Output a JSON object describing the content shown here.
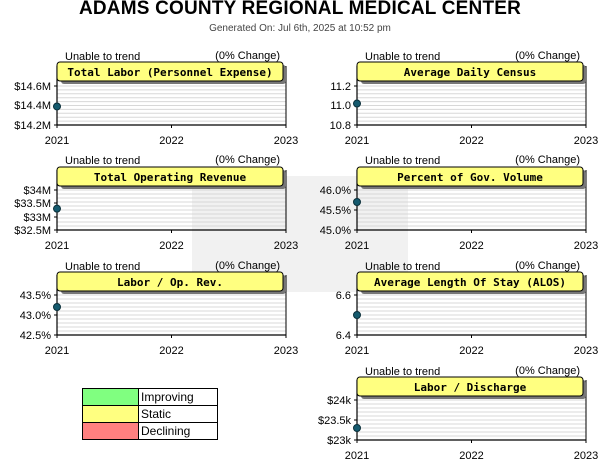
{
  "header": {
    "title": "ADAMS COUNTY REGIONAL MEDICAL CENTER",
    "generated": "Generated On: Jul 6th, 2025 at 10:52 pm"
  },
  "legend": [
    {
      "label": "Improving",
      "color": "#80ff80"
    },
    {
      "label": "Static",
      "color": "#ffff80"
    },
    {
      "label": "Declining",
      "color": "#ff8080"
    }
  ],
  "chart_data": [
    {
      "type": "line",
      "title": "Total Labor (Personnel Expense)",
      "trend": "Unable to trend",
      "change": "(0% Change)",
      "x_ticks": [
        "2021",
        "2022",
        "2023"
      ],
      "y_ticks": [
        "$14.6M",
        "$14.4M",
        "$14.2M"
      ],
      "ylim": [
        14.2,
        14.6
      ],
      "x": [
        2021
      ],
      "values": [
        14.39
      ]
    },
    {
      "type": "line",
      "title": "Average Daily Census",
      "trend": "Unable to trend",
      "change": "(0% Change)",
      "x_ticks": [
        "2021",
        "2022",
        "2023"
      ],
      "y_ticks": [
        "11.2",
        "11.0",
        "10.8"
      ],
      "ylim": [
        10.8,
        11.2
      ],
      "x": [
        2021
      ],
      "values": [
        11.02
      ]
    },
    {
      "type": "line",
      "title": "Total Operating Revenue",
      "trend": "Unable to trend",
      "change": "(0% Change)",
      "x_ticks": [
        "2021",
        "2022",
        "2023"
      ],
      "y_ticks": [
        "$34M",
        "$33.5M",
        "$33M",
        "$32.5M"
      ],
      "ylim": [
        32.5,
        34
      ],
      "x": [
        2021
      ],
      "values": [
        33.3
      ]
    },
    {
      "type": "line",
      "title": "Percent of Gov. Volume",
      "trend": "Unable to trend",
      "change": "(0% Change)",
      "x_ticks": [
        "2021",
        "2022",
        "2023"
      ],
      "y_ticks": [
        "46.0%",
        "45.5%",
        "45.0%"
      ],
      "ylim": [
        45.0,
        46.0
      ],
      "x": [
        2021
      ],
      "values": [
        45.7
      ]
    },
    {
      "type": "line",
      "title": "Labor / Op. Rev.",
      "trend": "Unable to trend",
      "change": "(0% Change)",
      "x_ticks": [
        "2021",
        "2022",
        "2023"
      ],
      "y_ticks": [
        "43.5%",
        "43.0%",
        "42.5%"
      ],
      "ylim": [
        42.5,
        43.5
      ],
      "x": [
        2021
      ],
      "values": [
        43.2
      ]
    },
    {
      "type": "line",
      "title": "Average Length Of Stay (ALOS)",
      "trend": "Unable to trend",
      "change": "(0% Change)",
      "x_ticks": [
        "2021",
        "2022",
        "2023"
      ],
      "y_ticks": [
        "6.6",
        "6.4"
      ],
      "ylim": [
        6.4,
        6.6
      ],
      "x": [
        2021
      ],
      "values": [
        6.5
      ]
    },
    {
      "type": "line",
      "title": "Labor / Discharge",
      "trend": "Unable to trend",
      "change": "(0% Change)",
      "x_ticks": [
        "2021",
        "2022",
        "2023"
      ],
      "y_ticks": [
        "$24k",
        "$23.5k",
        "$23k"
      ],
      "ylim": [
        23.0,
        24.0
      ],
      "x": [
        2021
      ],
      "values": [
        23.3
      ]
    }
  ]
}
